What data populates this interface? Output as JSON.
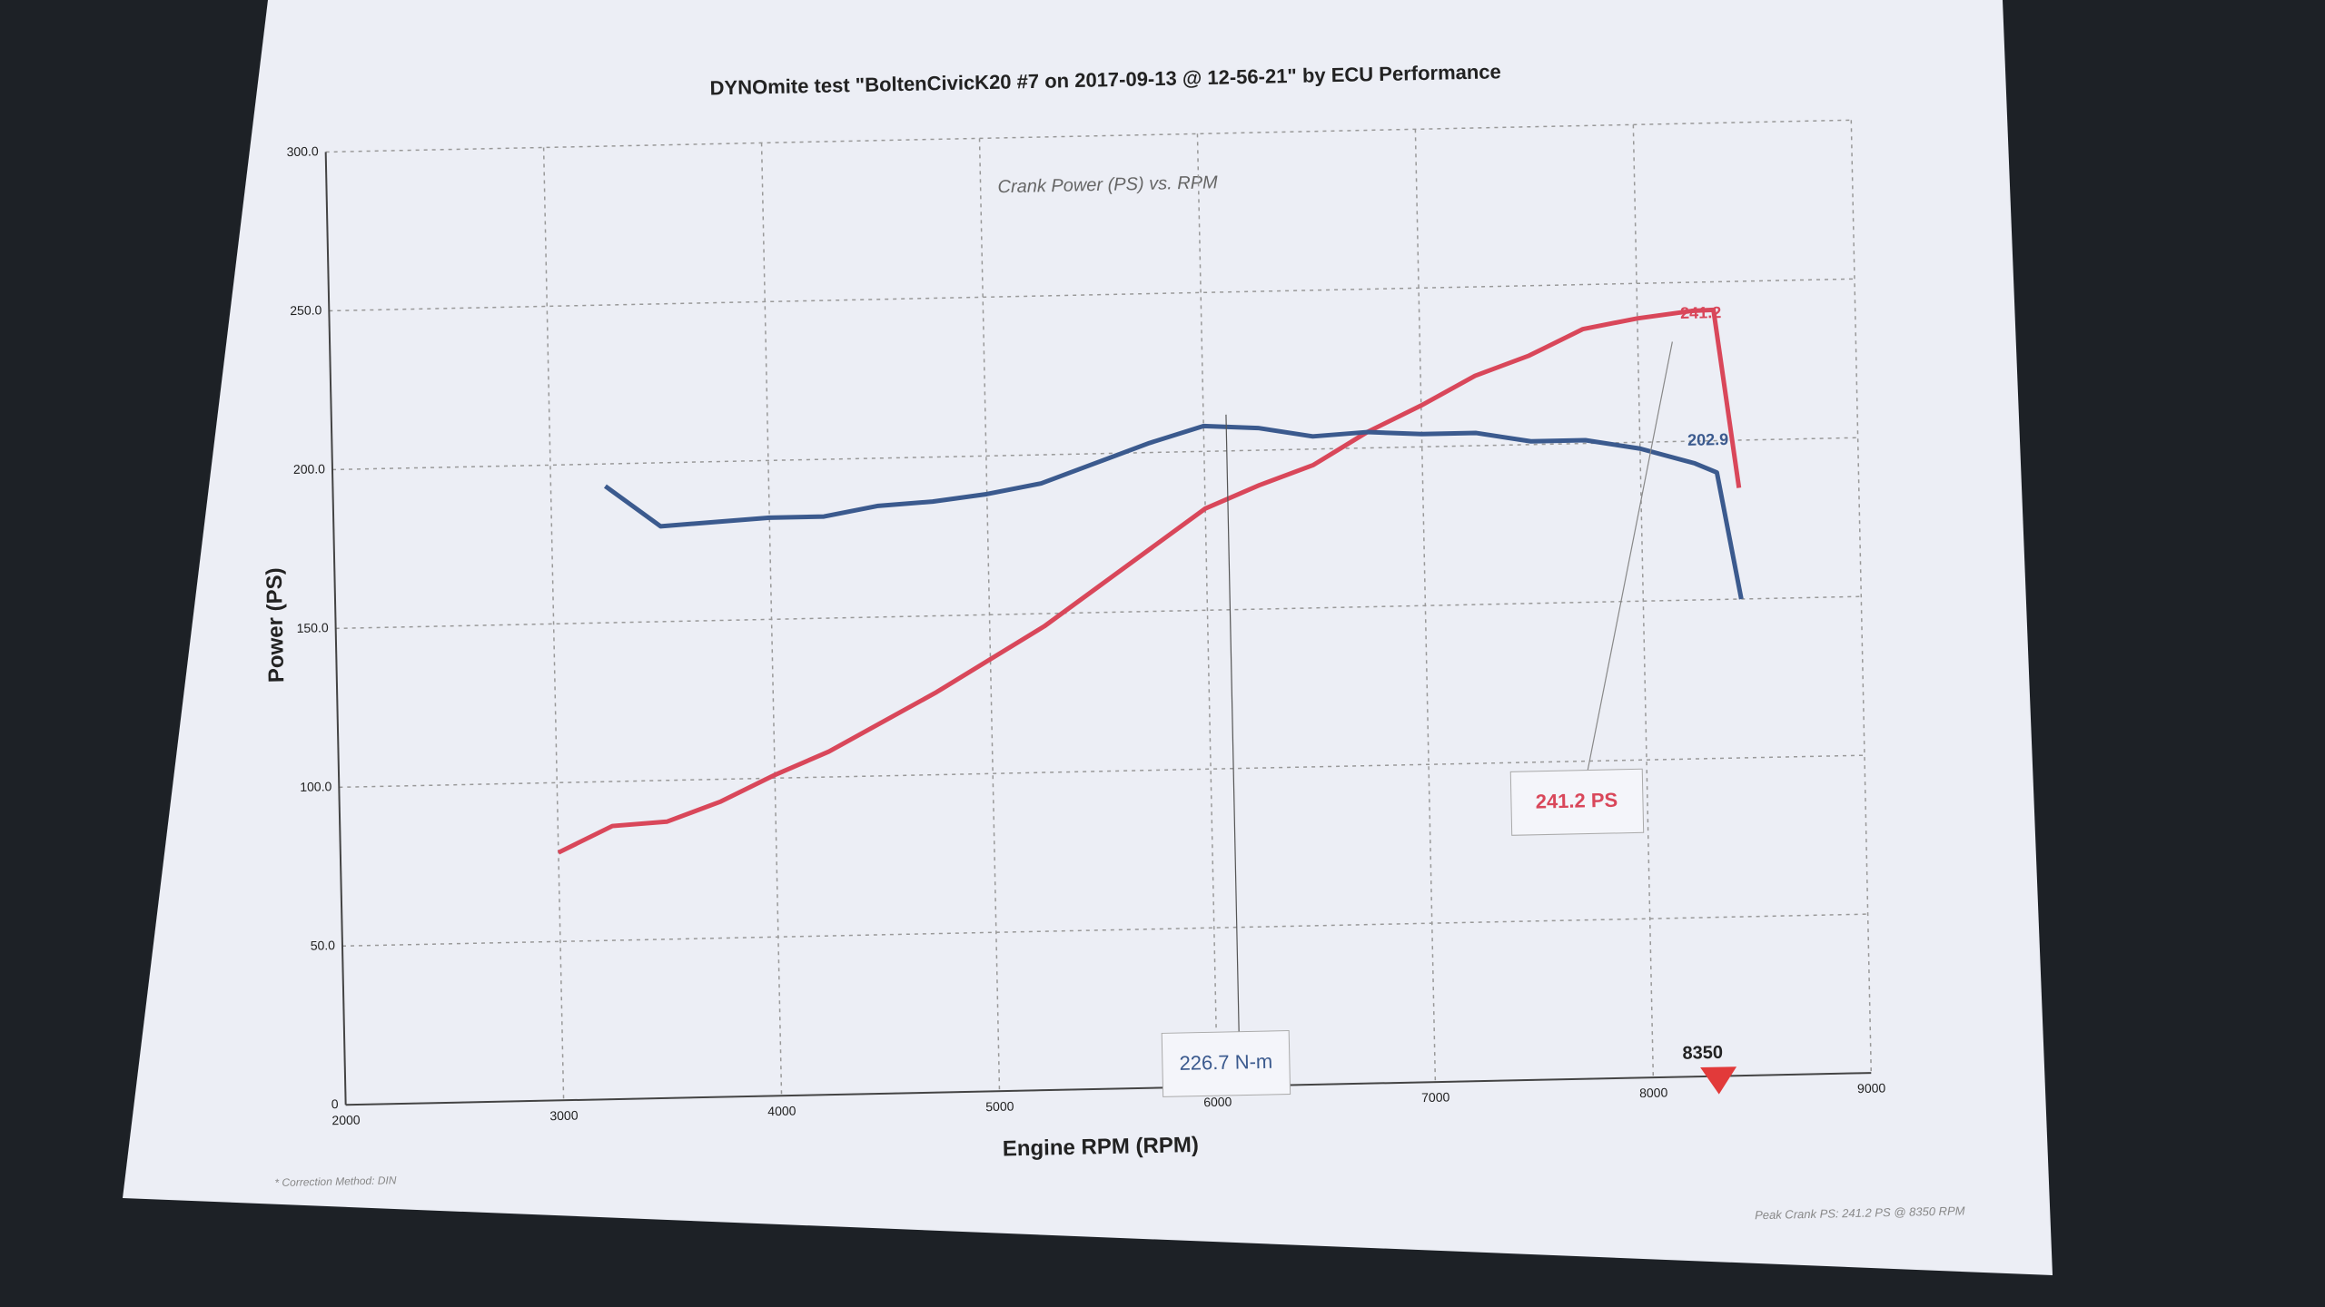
{
  "chart_data": {
    "type": "line",
    "title": "DYNOmite test \"BoltenCivicK20 #7 on 2017-09-13 @ 12-56-21\" by ECU Performance",
    "subtitle": "Crank Power (PS) vs. RPM",
    "xlabel": "Engine RPM (RPM)",
    "ylabel": "Power (PS)",
    "x": [
      3000,
      3250,
      3500,
      3750,
      4000,
      4250,
      4500,
      4750,
      5000,
      5250,
      5500,
      5750,
      6000,
      6250,
      6500,
      6750,
      7000,
      7250,
      7500,
      7750,
      8000,
      8250,
      8350,
      8450
    ],
    "series": [
      {
        "color": "#d9475a",
        "values": [
          78,
          86,
          87,
          93,
          101,
          108,
          117,
          126,
          136,
          146,
          158,
          170,
          182,
          189,
          195,
          205,
          213,
          222,
          228,
          236,
          239,
          241,
          241.2,
          185
        ]
      },
      {
        "color": "#3b5a8e",
        "values": [
          null,
          193,
          180,
          181,
          182,
          182,
          185,
          186,
          188,
          191,
          197,
          203,
          208,
          207,
          204,
          205,
          204,
          204,
          201,
          201,
          198,
          193,
          190,
          150
        ]
      }
    ],
    "xlim": [
      2000,
      9000
    ],
    "xticks": [
      2000,
      3000,
      4000,
      5000,
      6000,
      7000,
      8000,
      9000
    ],
    "ylim": [
      0,
      300
    ],
    "yticks": [
      0,
      {
        "value": 50,
        "label": "50.0"
      },
      {
        "value": 100,
        "label": "100.0"
      },
      {
        "value": 150,
        "label": "150.0"
      },
      {
        "value": 200,
        "label": "200.0"
      },
      {
        "value": 250,
        "label": "250.0"
      },
      {
        "value": 300,
        "label": "300.0"
      }
    ],
    "grid": true,
    "annotations": [
      "241.2",
      "202.9",
      "241.2 PS",
      "226.7 N-m",
      "8350"
    ],
    "notes": [
      "* Correction Method: DIN",
      "Peak Crank PS: 241.2 PS @ 8350 RPM"
    ]
  }
}
